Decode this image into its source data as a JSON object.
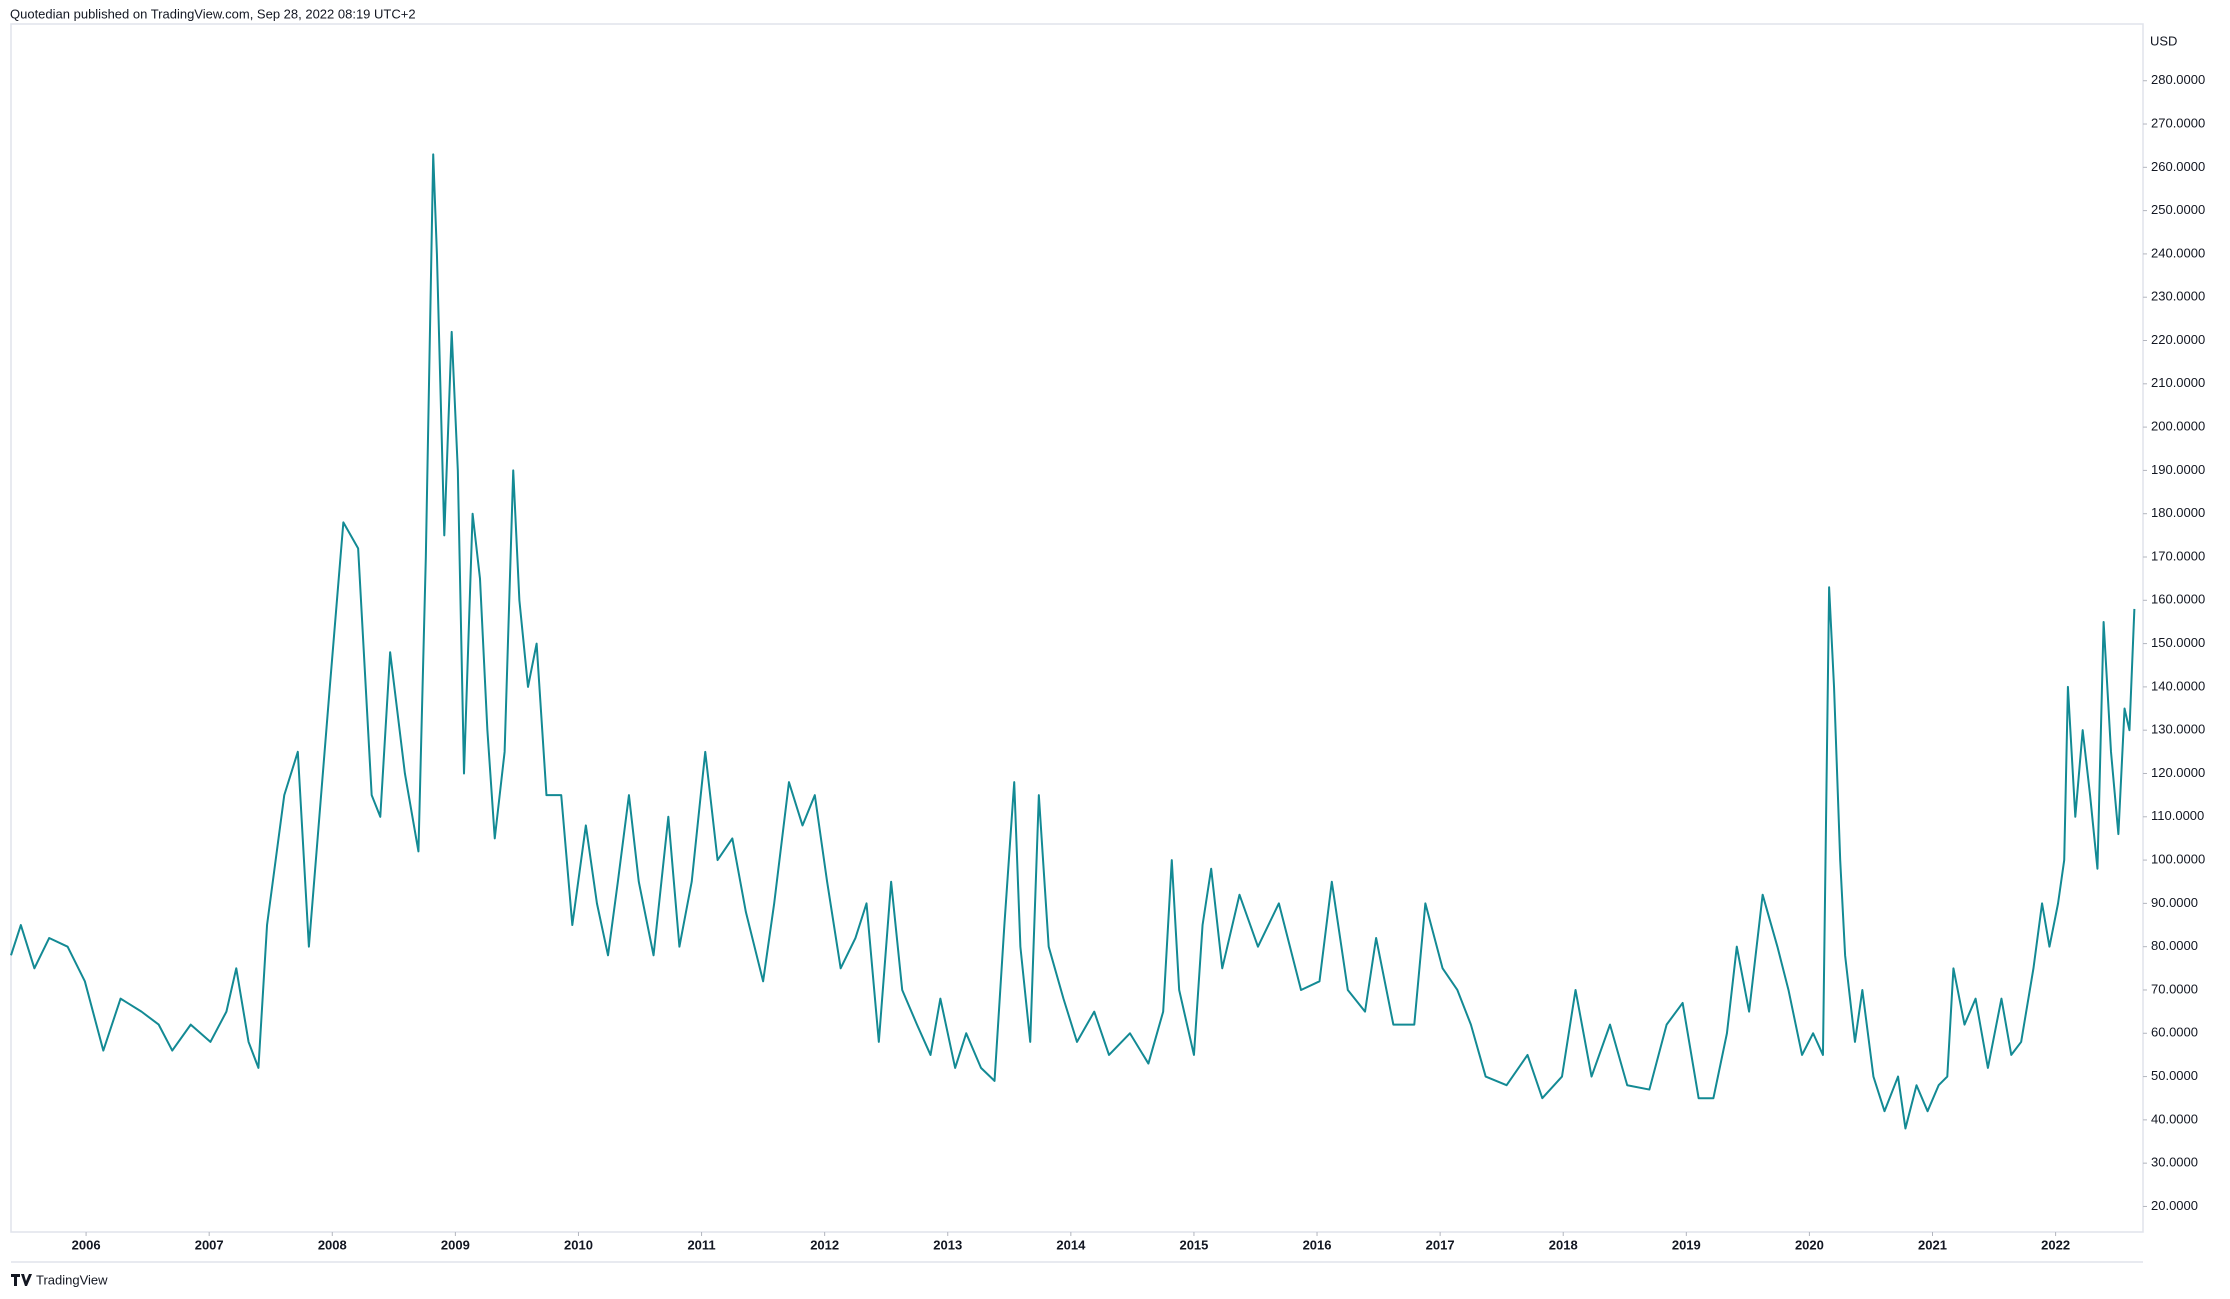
{
  "header": {
    "title": "Quotedian published on TradingView.com, Sep 28, 2022 08:19 UTC+2"
  },
  "footer": {
    "brand": "TradingView"
  },
  "chart_data": {
    "type": "line",
    "y_axis_label": "USD",
    "color": "#138a94",
    "grid": false,
    "xlim": [
      2005.39,
      2022.71
    ],
    "xticks": [
      2006,
      2007,
      2008,
      2009,
      2010,
      2011,
      2012,
      2013,
      2014,
      2015,
      2016,
      2017,
      2018,
      2019,
      2020,
      2021,
      2022
    ],
    "ylim": [
      14.1,
      293.1
    ],
    "yticks": [
      {
        "value": 20,
        "label": "20.0000"
      },
      {
        "value": 30,
        "label": "30.0000"
      },
      {
        "value": 40,
        "label": "40.0000"
      },
      {
        "value": 50,
        "label": "50.0000"
      },
      {
        "value": 60,
        "label": "60.0000"
      },
      {
        "value": 70,
        "label": "70.0000"
      },
      {
        "value": 80,
        "label": "80.0000"
      },
      {
        "value": 90,
        "label": "90.0000"
      },
      {
        "value": 100,
        "label": "100.0000"
      },
      {
        "value": 110,
        "label": "110.0000"
      },
      {
        "value": 120,
        "label": "120.0000"
      },
      {
        "value": 130,
        "label": "130.0000"
      },
      {
        "value": 140,
        "label": "140.0000"
      },
      {
        "value": 150,
        "label": "150.0000"
      },
      {
        "value": 160,
        "label": "160.0000"
      },
      {
        "value": 170,
        "label": "170.0000"
      },
      {
        "value": 180,
        "label": "180.0000"
      },
      {
        "value": 190,
        "label": "190.0000"
      },
      {
        "value": 200,
        "label": "200.0000"
      },
      {
        "value": 210,
        "label": "210.0000"
      },
      {
        "value": 220,
        "label": "220.0000"
      },
      {
        "value": 230,
        "label": "230.0000"
      },
      {
        "value": 240,
        "label": "240.0000"
      },
      {
        "value": 250,
        "label": "250.0000"
      },
      {
        "value": 260,
        "label": "260.0000"
      },
      {
        "value": 270,
        "label": "270.0000"
      },
      {
        "value": 280,
        "label": "280.0000"
      }
    ],
    "x": [
      2005.39,
      2005.47,
      2005.58,
      2005.7,
      2005.85,
      2005.99,
      2006.14,
      2006.28,
      2006.45,
      2006.59,
      2006.7,
      2006.85,
      2007.01,
      2007.14,
      2007.22,
      2007.32,
      2007.4,
      2007.47,
      2007.61,
      2007.72,
      2007.81,
      2007.98,
      2008.09,
      2008.21,
      2008.32,
      2008.39,
      2008.47,
      2008.59,
      2008.7,
      2008.76,
      2008.82,
      2008.85,
      2008.91,
      2008.97,
      2009.02,
      2009.07,
      2009.14,
      2009.2,
      2009.26,
      2009.32,
      2009.4,
      2009.47,
      2009.52,
      2009.59,
      2009.66,
      2009.74,
      2009.86,
      2009.95,
      2010.06,
      2010.15,
      2010.24,
      2010.32,
      2010.41,
      2010.49,
      2010.61,
      2010.73,
      2010.82,
      2010.92,
      2011.03,
      2011.13,
      2011.25,
      2011.36,
      2011.5,
      2011.59,
      2011.71,
      2011.82,
      2011.92,
      2012.02,
      2012.13,
      2012.25,
      2012.34,
      2012.44,
      2012.54,
      2012.63,
      2012.75,
      2012.86,
      2012.94,
      2013.06,
      2013.15,
      2013.27,
      2013.38,
      2013.46,
      2013.54,
      2013.59,
      2013.67,
      2013.74,
      2013.82,
      2013.94,
      2014.05,
      2014.19,
      2014.31,
      2014.48,
      2014.63,
      2014.75,
      2014.82,
      2014.88,
      2015.0,
      2015.07,
      2015.14,
      2015.23,
      2015.37,
      2015.52,
      2015.69,
      2015.87,
      2016.02,
      2016.12,
      2016.25,
      2016.39,
      2016.48,
      2016.62,
      2016.79,
      2016.88,
      2017.02,
      2017.14,
      2017.25,
      2017.37,
      2017.54,
      2017.71,
      2017.83,
      2017.99,
      2018.1,
      2018.23,
      2018.38,
      2018.52,
      2018.7,
      2018.84,
      2018.97,
      2019.1,
      2019.22,
      2019.33,
      2019.41,
      2019.51,
      2019.62,
      2019.74,
      2019.83,
      2019.94,
      2020.03,
      2020.11,
      2020.16,
      2020.2,
      2020.25,
      2020.29,
      2020.37,
      2020.43,
      2020.52,
      2020.61,
      2020.72,
      2020.78,
      2020.87,
      2020.96,
      2021.05,
      2021.12,
      2021.17,
      2021.26,
      2021.35,
      2021.45,
      2021.56,
      2021.64,
      2021.72,
      2021.82,
      2021.89,
      2021.95,
      2022.02,
      2022.07,
      2022.1,
      2022.16,
      2022.22,
      2022.28,
      2022.34,
      2022.39,
      2022.45,
      2022.51,
      2022.56,
      2022.6,
      2022.64
    ],
    "values": [
      78,
      85,
      75,
      82,
      80,
      72,
      56,
      68,
      65,
      62,
      56,
      62,
      58,
      65,
      75,
      58,
      52,
      85,
      115,
      125,
      80,
      140,
      178,
      172,
      115,
      110,
      148,
      120,
      102,
      170,
      263,
      240,
      175,
      222,
      190,
      120,
      180,
      165,
      130,
      105,
      125,
      190,
      160,
      140,
      150,
      115,
      115,
      85,
      108,
      90,
      78,
      95,
      115,
      95,
      78,
      110,
      80,
      95,
      125,
      100,
      105,
      88,
      72,
      90,
      118,
      108,
      115,
      95,
      75,
      82,
      90,
      58,
      95,
      70,
      62,
      55,
      68,
      52,
      60,
      52,
      49,
      85,
      118,
      80,
      58,
      115,
      80,
      68,
      58,
      65,
      55,
      60,
      53,
      65,
      100,
      70,
      55,
      85,
      98,
      75,
      92,
      80,
      90,
      70,
      72,
      95,
      70,
      65,
      82,
      62,
      62,
      90,
      75,
      70,
      62,
      50,
      48,
      55,
      45,
      50,
      70,
      50,
      62,
      48,
      47,
      62,
      67,
      45,
      45,
      60,
      80,
      65,
      92,
      80,
      70,
      55,
      60,
      55,
      163,
      140,
      100,
      78,
      58,
      70,
      50,
      42,
      50,
      38,
      48,
      42,
      48,
      50,
      75,
      62,
      68,
      52,
      68,
      55,
      58,
      75,
      90,
      80,
      90,
      100,
      140,
      110,
      130,
      115,
      98,
      155,
      125,
      106,
      135,
      130,
      158
    ]
  }
}
